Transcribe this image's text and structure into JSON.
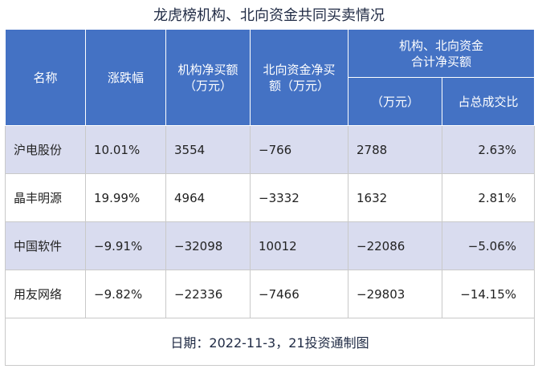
{
  "title": "龙虎榜机构、北向资金共同买卖情况",
  "headers": {
    "name": "名称",
    "change": "涨跌幅",
    "inst_net": "机构净买额\n（万元）",
    "north_net": "北向资金净买\n额（万元）",
    "combined_group": "机构、北向资金\n合计净买额",
    "combined_amount": "（万元）",
    "combined_ratio": "占总成交比"
  },
  "rows": [
    {
      "name": "沪电股份",
      "change": "10.01%",
      "inst_net": "3554",
      "north_net": "−766",
      "combined": "2788",
      "ratio": "2.63%"
    },
    {
      "name": "晶丰明源",
      "change": "19.99%",
      "inst_net": "4964",
      "north_net": "−3332",
      "combined": "1632",
      "ratio": "2.81%"
    },
    {
      "name": "中国软件",
      "change": "−9.91%",
      "inst_net": "−32098",
      "north_net": "10012",
      "combined": "−22086",
      "ratio": "−5.06%"
    },
    {
      "name": "用友网络",
      "change": "−9.82%",
      "inst_net": "−22336",
      "north_net": "−7466",
      "combined": "−29803",
      "ratio": "−14.15%"
    }
  ],
  "footer": "日期：2022-11-3，21投资通制图"
}
